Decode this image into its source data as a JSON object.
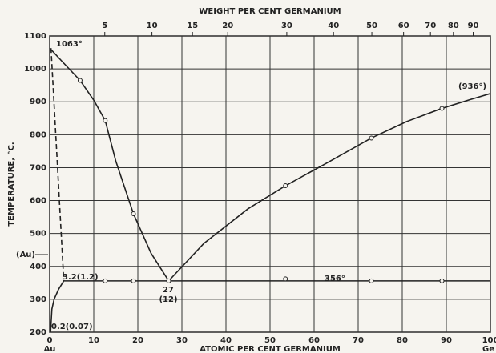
{
  "chart_data": {
    "type": "line",
    "title": "WEIGHT PER CENT GERMANIUM",
    "x_label": "ATOMIC PER CENT GERMANIUM",
    "y_label": "TEMPERATURE, °C.",
    "x_end_labels": [
      "Au",
      "Ge"
    ],
    "xlim": [
      0,
      100
    ],
    "ylim": [
      200,
      1100
    ],
    "xticks": [
      0,
      10,
      20,
      30,
      40,
      50,
      60,
      70,
      80,
      90,
      100
    ],
    "yticks": [
      200,
      300,
      400,
      500,
      600,
      700,
      800,
      900,
      1000,
      1100
    ],
    "x2ticks": [
      {
        "value": 12.5,
        "label": "5"
      },
      {
        "value": 23.2,
        "label": "10"
      },
      {
        "value": 32.4,
        "label": "15"
      },
      {
        "value": 40.4,
        "label": "20"
      },
      {
        "value": 53.8,
        "label": "30"
      },
      {
        "value": 64.4,
        "label": "40"
      },
      {
        "value": 73.1,
        "label": "50"
      },
      {
        "value": 80.3,
        "label": "60"
      },
      {
        "value": 86.4,
        "label": "70"
      },
      {
        "value": 91.6,
        "label": "80"
      },
      {
        "value": 96.1,
        "label": "90"
      }
    ],
    "grid": true,
    "color": "#222222",
    "series": [
      {
        "x": [
          0,
          3,
          6.9,
          10,
          12.6,
          15,
          19,
          23,
          27
        ],
        "values": [
          1063,
          1020,
          965,
          905,
          843,
          720,
          560,
          440,
          356
        ],
        "style": "solid"
      },
      {
        "x": [
          27,
          35,
          45,
          53.5,
          63,
          73,
          81,
          89,
          95,
          100
        ],
        "values": [
          356,
          470,
          575,
          645,
          715,
          790,
          840,
          880,
          905,
          925
        ],
        "style": "solid"
      },
      {
        "x": [
          3.2,
          100
        ],
        "values": [
          356,
          356
        ],
        "style": "solid"
      },
      {
        "x": [
          0.3,
          3.2
        ],
        "values": [
          1063,
          356
        ],
        "style": "dashed"
      },
      {
        "x": [
          0.2,
          0.5,
          1,
          2,
          3.2
        ],
        "values": [
          200,
          270,
          300,
          330,
          356
        ],
        "style": "solid"
      }
    ],
    "points": {
      "x": [
        6.9,
        12.6,
        19,
        27,
        53.5,
        73,
        89,
        12.6,
        19,
        53.5,
        73,
        89
      ],
      "values": [
        965,
        843,
        560,
        356,
        645,
        790,
        880,
        356,
        356,
        362,
        356,
        356
      ]
    },
    "annotations": [
      "1063°",
      "(936°)",
      "356°",
      "27",
      "(12)",
      "3.2(1.2)",
      "0.2(0.07)",
      "(Au)"
    ]
  }
}
